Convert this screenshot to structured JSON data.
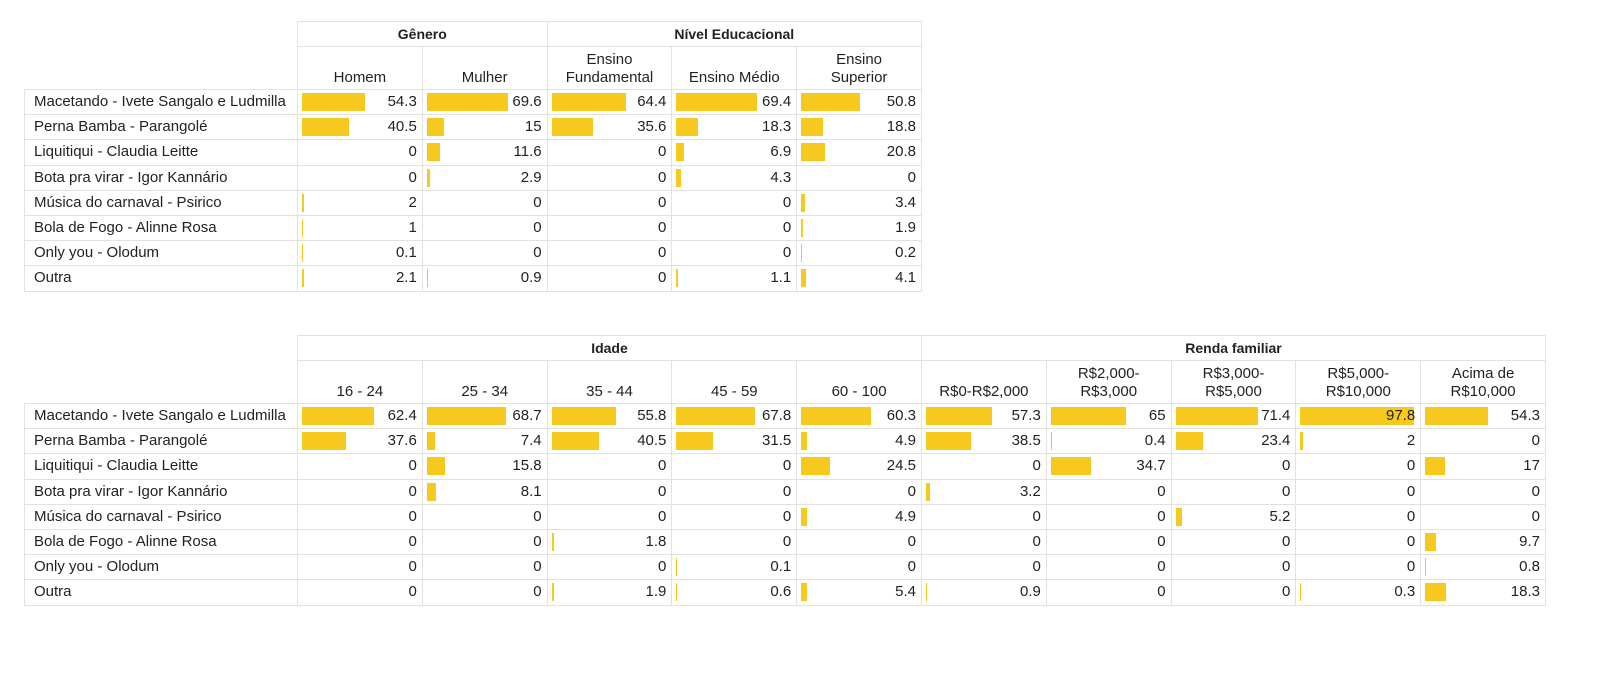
{
  "tables": [
    {
      "groups": [
        {
          "label": "Gênero",
          "columns": [
            "Homem",
            "Mulher"
          ]
        },
        {
          "label": "Nível Educacional",
          "columns": [
            "Ensino\nFundamental",
            "Ensino Médio",
            "Ensino\nSuperior"
          ]
        }
      ],
      "rows": [
        {
          "label": "Macetando - Ivete Sangalo e Ludmilla",
          "values": [
            54.3,
            69.6,
            64.4,
            69.4,
            50.8
          ]
        },
        {
          "label": "Perna Bamba - Parangolé",
          "values": [
            40.5,
            15,
            35.6,
            18.3,
            18.8
          ]
        },
        {
          "label": "Liquitiqui - Claudia Leitte",
          "values": [
            0,
            11.6,
            0,
            6.9,
            20.8
          ]
        },
        {
          "label": "Bota pra virar - Igor Kannário",
          "values": [
            0,
            2.9,
            0,
            4.3,
            0
          ]
        },
        {
          "label": "Música do carnaval - Psirico",
          "values": [
            2,
            0,
            0,
            0,
            3.4
          ]
        },
        {
          "label": "Bola de Fogo - Alinne Rosa",
          "values": [
            1,
            0,
            0,
            0,
            1.9
          ]
        },
        {
          "label": "Only you - Olodum",
          "values": [
            0.1,
            0,
            0,
            0,
            0.2
          ]
        },
        {
          "label": "Outra",
          "values": [
            2.1,
            0.9,
            0,
            1.1,
            4.1
          ]
        }
      ]
    },
    {
      "groups": [
        {
          "label": "Idade",
          "columns": [
            "16 - 24",
            "25 - 34",
            "35 - 44",
            "45 - 59",
            "60 - 100"
          ]
        },
        {
          "label": "Renda familiar",
          "columns": [
            "R$0-R$2,000",
            "R$2,000-\nR$3,000",
            "R$3,000-\nR$5,000",
            "R$5,000-\nR$10,000",
            "Acima de\nR$10,000"
          ]
        }
      ],
      "rows": [
        {
          "label": "Macetando - Ivete Sangalo e Ludmilla",
          "values": [
            62.4,
            68.7,
            55.8,
            67.8,
            60.3,
            57.3,
            65,
            71.4,
            97.8,
            54.3
          ]
        },
        {
          "label": "Perna Bamba - Parangolé",
          "values": [
            37.6,
            7.4,
            40.5,
            31.5,
            4.9,
            38.5,
            0.4,
            23.4,
            2,
            0
          ]
        },
        {
          "label": "Liquitiqui - Claudia Leitte",
          "values": [
            0,
            15.8,
            0,
            0,
            24.5,
            0,
            34.7,
            0,
            0,
            17
          ]
        },
        {
          "label": "Bota pra virar - Igor Kannário",
          "values": [
            0,
            8.1,
            0,
            0,
            0,
            3.2,
            0,
            0,
            0,
            0
          ]
        },
        {
          "label": "Música do carnaval - Psirico",
          "values": [
            0,
            0,
            0,
            0,
            4.9,
            0,
            0,
            5.2,
            0,
            0
          ]
        },
        {
          "label": "Bola de Fogo - Alinne Rosa",
          "values": [
            0,
            0,
            1.8,
            0,
            0,
            0,
            0,
            0,
            0,
            9.7
          ]
        },
        {
          "label": "Only you - Olodum",
          "values": [
            0,
            0,
            0,
            0.1,
            0,
            0,
            0,
            0,
            0,
            0.8
          ]
        },
        {
          "label": "Outra",
          "values": [
            0,
            0,
            1.9,
            0.6,
            5.4,
            0.9,
            0,
            0,
            0.3,
            18.3
          ]
        }
      ]
    }
  ]
}
